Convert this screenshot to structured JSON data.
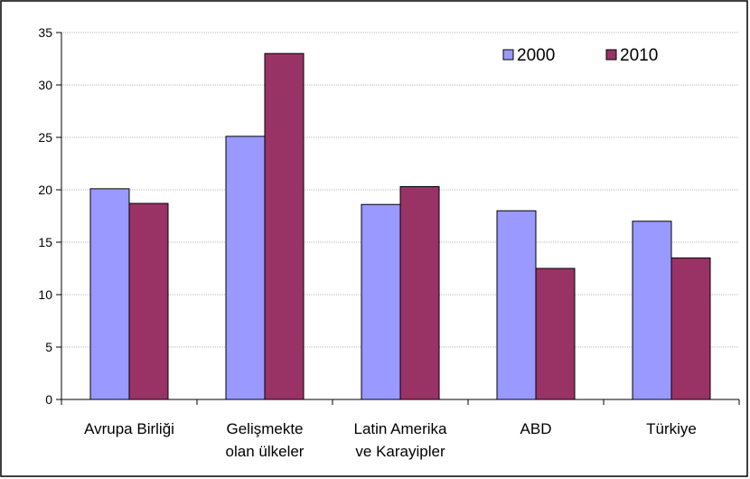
{
  "chart_data": {
    "type": "bar",
    "categories": [
      [
        "Avrupa Birliği"
      ],
      [
        "Gelişmekte",
        "olan ülkeler"
      ],
      [
        "Latin Amerika",
        "ve Karayipler"
      ],
      [
        "ABD"
      ],
      [
        "Türkiye"
      ]
    ],
    "series": [
      {
        "name": "2000",
        "values": [
          20.1,
          25.1,
          18.6,
          18.0,
          17.0
        ],
        "color": "#9999ff"
      },
      {
        "name": "2010",
        "values": [
          18.7,
          33.0,
          20.3,
          12.5,
          13.5
        ],
        "color": "#993366"
      }
    ],
    "yticks": [
      "0",
      "5",
      "10",
      "15",
      "20",
      "25",
      "30",
      "35"
    ],
    "ylim": [
      0,
      35
    ],
    "grid": true,
    "legend": "top-right"
  }
}
